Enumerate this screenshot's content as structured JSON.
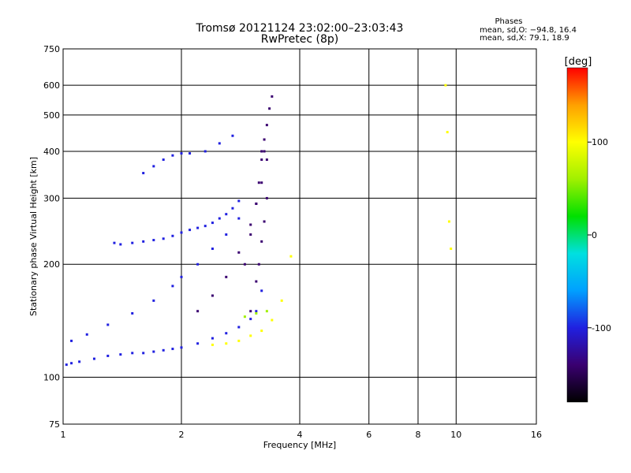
{
  "chart_data": {
    "type": "scatter",
    "title": "Tromsø 20121124 23:02:00–23:03:43",
    "subtitle": "RwPretec (8p)",
    "xlabel": "Frequency [MHz]",
    "ylabel": "Stationary phase Virtual Height [km]",
    "x_scale": "log",
    "y_scale": "log",
    "xlim": [
      1,
      16
    ],
    "ylim": [
      75,
      750
    ],
    "x_ticks": [
      1,
      2,
      4,
      6,
      8,
      10,
      16
    ],
    "y_ticks": [
      75,
      100,
      200,
      300,
      400,
      500,
      600,
      750
    ],
    "grid": true,
    "stats": {
      "heading": "Phases",
      "line1": "mean, sd,O: −94.8, 16.4",
      "line2": "mean, sd,X:  79.1, 18.9"
    },
    "colorbar": {
      "label": "[deg]",
      "range": [
        -180,
        180
      ],
      "ticks": [
        -100,
        0,
        100
      ],
      "colors": [
        "#000000",
        "#3a0070",
        "#2020e0",
        "#00a0ff",
        "#00e0e0",
        "#00e000",
        "#a0f000",
        "#ffff00",
        "#ffa000",
        "#ff0000"
      ]
    },
    "series": [
      {
        "x": [
          1.02,
          1.05,
          1.1,
          1.2,
          1.3,
          1.4,
          1.5,
          1.6,
          1.7,
          1.8,
          1.9,
          2.0,
          2.2,
          2.4,
          2.6,
          2.8,
          3.0,
          3.1,
          3.2
        ],
        "y": [
          108,
          109,
          110,
          112,
          114,
          115,
          116,
          116,
          117,
          118,
          119,
          120,
          123,
          127,
          131,
          136,
          143,
          150,
          170
        ],
        "phase": -100
      },
      {
        "x": [
          1.05,
          1.15,
          1.3,
          1.5,
          1.7,
          1.9,
          2.0,
          2.2,
          2.4,
          2.6,
          2.8
        ],
        "y": [
          125,
          130,
          138,
          148,
          160,
          175,
          185,
          200,
          220,
          240,
          265
        ],
        "phase": -110
      },
      {
        "x": [
          1.35,
          1.4,
          1.5,
          1.6,
          1.7,
          1.8,
          1.9,
          2.0,
          2.1,
          2.2,
          2.3,
          2.4,
          2.5,
          2.6,
          2.7,
          2.8
        ],
        "y": [
          228,
          226,
          228,
          230,
          232,
          234,
          238,
          243,
          247,
          250,
          253,
          258,
          265,
          272,
          282,
          295
        ],
        "phase": -110
      },
      {
        "x": [
          1.6,
          1.7,
          1.8,
          1.9,
          2.0,
          2.1,
          2.3,
          2.5,
          2.7
        ],
        "y": [
          350,
          365,
          380,
          390,
          395,
          395,
          400,
          420,
          440
        ],
        "phase": -110
      },
      {
        "x": [
          2.2,
          2.4,
          2.6,
          2.8,
          3.0,
          3.1,
          3.2,
          3.3
        ],
        "y": [
          150,
          165,
          185,
          215,
          255,
          290,
          330,
          380
        ],
        "phase": -125
      },
      {
        "x": [
          2.9,
          3.0,
          3.1,
          3.15,
          3.2,
          3.25
        ],
        "y": [
          200,
          240,
          290,
          330,
          380,
          400
        ],
        "phase": -130
      },
      {
        "x": [
          3.0,
          3.1,
          3.15,
          3.2,
          3.25,
          3.3
        ],
        "y": [
          150,
          180,
          200,
          230,
          260,
          300
        ],
        "phase": -140
      },
      {
        "x": [
          3.2,
          3.25,
          3.3,
          3.35,
          3.4
        ],
        "y": [
          400,
          430,
          470,
          520,
          560
        ],
        "phase": -135
      },
      {
        "x": [
          2.4,
          2.6,
          2.8,
          3.0,
          3.2,
          3.4,
          3.6,
          3.8
        ],
        "y": [
          122,
          123,
          125,
          129,
          133,
          142,
          160,
          210
        ],
        "phase": 110
      },
      {
        "x": [
          2.9,
          3.1,
          3.3
        ],
        "y": [
          145,
          148,
          150
        ],
        "phase": 75
      },
      {
        "x": [
          9.4,
          9.5,
          9.6,
          9.7
        ],
        "y": [
          600,
          450,
          260,
          220
        ],
        "phase": 100
      }
    ]
  }
}
